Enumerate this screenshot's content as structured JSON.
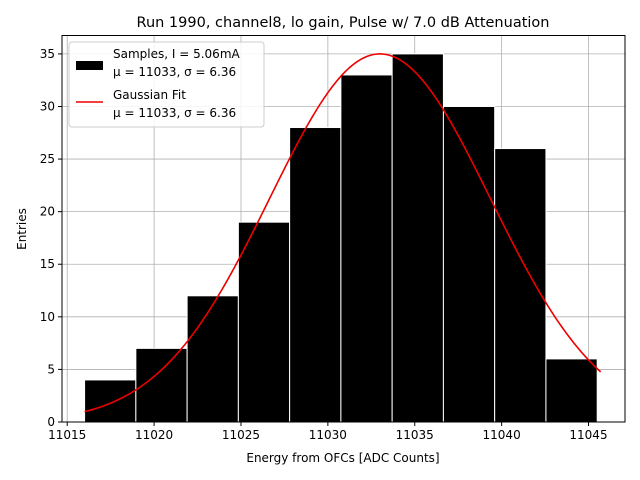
{
  "chart_data": {
    "type": "bar",
    "title": "Run 1990, channel8, lo gain, Pulse w/ 7.0 dB Attenuation",
    "xlabel": "Energy from OFCs [ADC Counts]",
    "ylabel": "Entries",
    "xlim": [
      11014.7,
      11047.1
    ],
    "ylim": [
      0,
      36.75
    ],
    "grid": true,
    "legend_position": "top-left",
    "x_ticks": [
      11015,
      11020,
      11025,
      11030,
      11035,
      11040,
      11045
    ],
    "y_ticks": [
      0,
      5,
      10,
      15,
      20,
      25,
      30,
      35
    ],
    "histogram": {
      "name": "Samples, I = 5.06mA",
      "stats": "μ = 11033, σ = 6.36",
      "color": "#000000",
      "edge_color": "#ffffff",
      "bin_edges": [
        11016.0,
        11018.95,
        11021.9,
        11024.85,
        11027.8,
        11030.75,
        11033.7,
        11036.65,
        11039.6,
        11042.55,
        11045.5
      ],
      "counts": [
        4,
        7,
        12,
        19,
        28,
        33,
        35,
        30,
        26,
        6
      ]
    },
    "fit": {
      "name": "Gaussian Fit",
      "stats": "μ = 11033, σ = 6.36",
      "color": "#ee0000",
      "mu": 11033.0,
      "sigma": 6.36,
      "amplitude": 35.0,
      "x_range": [
        11016.0,
        11045.7
      ]
    }
  }
}
